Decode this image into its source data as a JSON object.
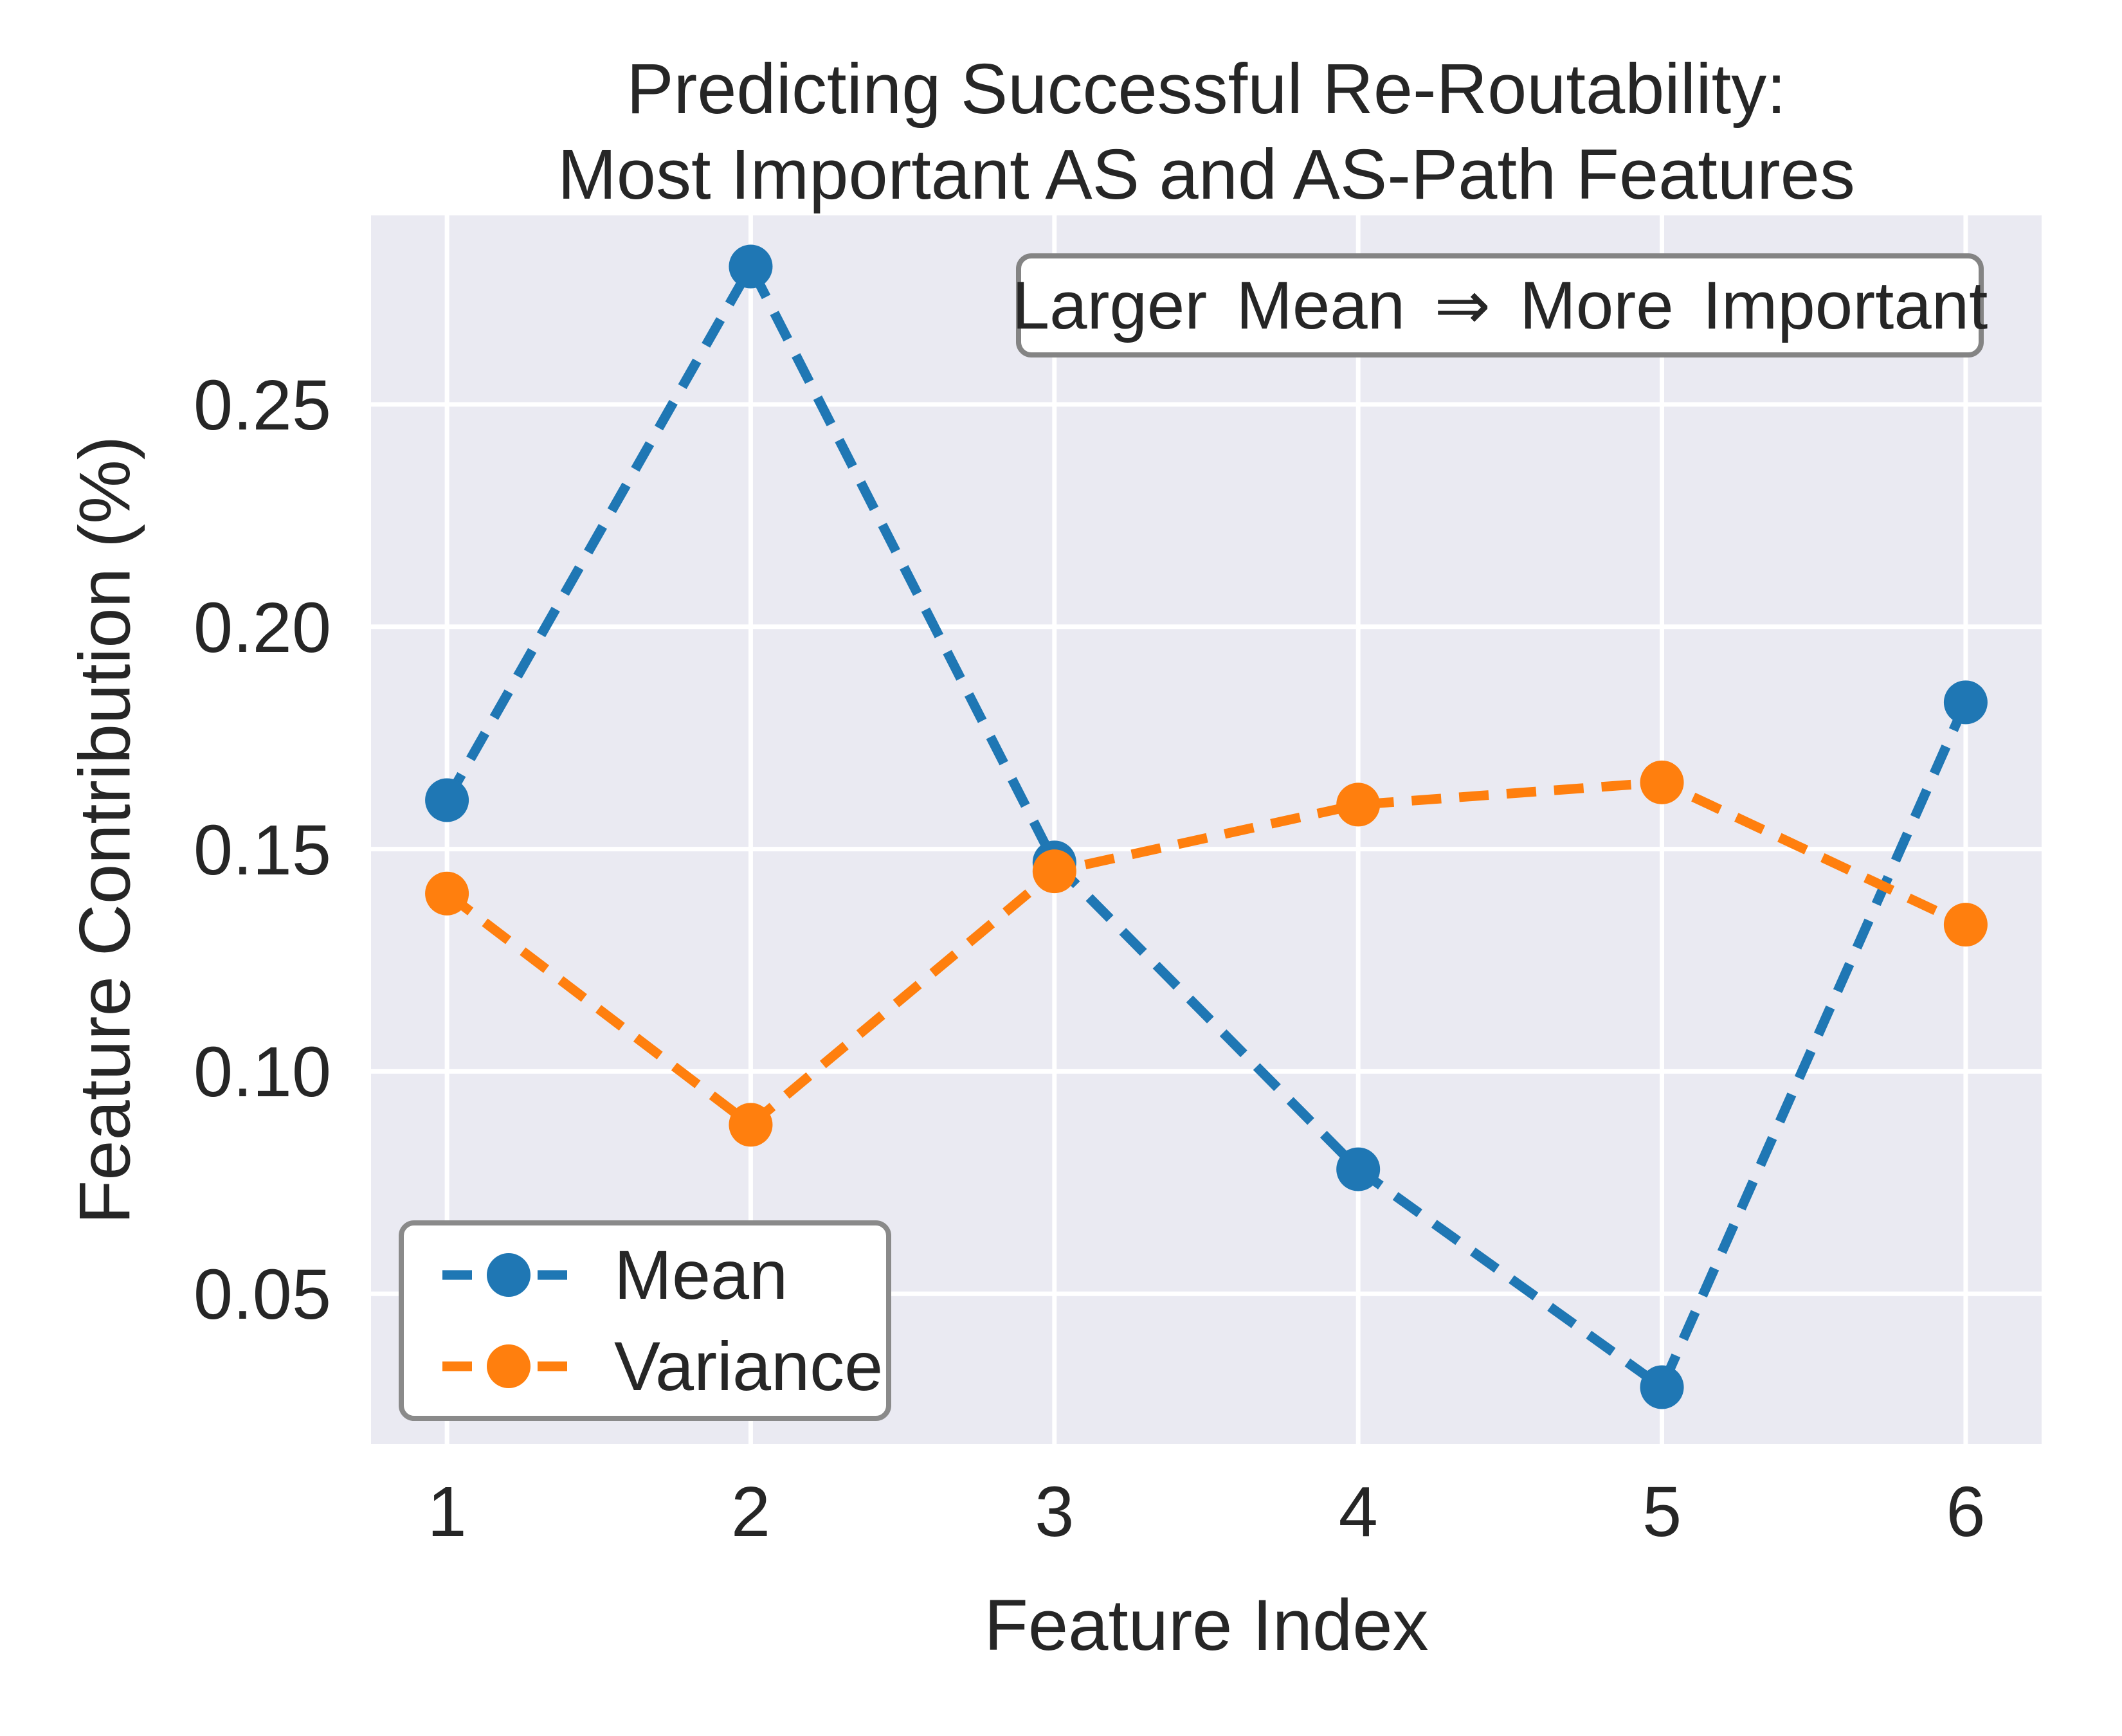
{
  "chart_data": {
    "type": "line",
    "title_line1": "Predicting Successful Re-Routability:",
    "title_line2": "Most Important AS and AS-Path Features",
    "xlabel": "Feature Index",
    "ylabel": "Feature Contribution (%)",
    "annotation": "Larger Mean ⇒ More Important",
    "x": [
      1,
      2,
      3,
      4,
      5,
      6
    ],
    "x_tick_labels": [
      "1",
      "2",
      "3",
      "4",
      "5",
      "6"
    ],
    "y_ticks": [
      0.05,
      0.1,
      0.15,
      0.2,
      0.25
    ],
    "y_tick_labels": [
      "0.05",
      "0.10",
      "0.15",
      "0.20",
      "0.25"
    ],
    "xlim": [
      0.75,
      6.25
    ],
    "ylim": [
      0.0162,
      0.2925
    ],
    "grid": true,
    "legend_position": "lower left",
    "plot_bg": "#eaeaf2",
    "grid_color": "#ffffff",
    "line_style": "dashed",
    "marker": "o",
    "series": [
      {
        "name": "Mean",
        "color": "#1f77b4",
        "values": [
          0.161,
          0.281,
          0.147,
          0.078,
          0.029,
          0.183
        ]
      },
      {
        "name": "Variance",
        "color": "#ff7f0e",
        "values": [
          0.14,
          0.088,
          0.145,
          0.16,
          0.165,
          0.133
        ]
      }
    ]
  }
}
